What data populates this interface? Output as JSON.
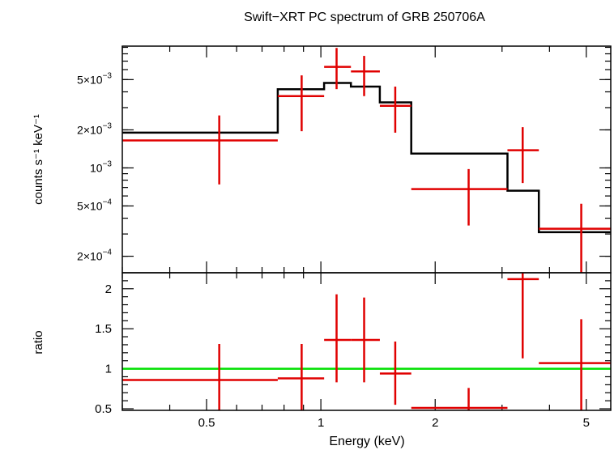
{
  "chart_data": [
    {
      "type": "scatter",
      "panel": "spectrum",
      "title": "Swift−XRT PC spectrum of GRB 250706A",
      "xlabel": "",
      "ylabel": "counts s⁻¹ keV⁻¹",
      "x_scale": "log",
      "y_scale": "log",
      "xlim": [
        0.3,
        5.8
      ],
      "ylim": [
        0.000148,
        0.0092
      ],
      "y_ticks": [
        {
          "value": 0.005,
          "mant": "5×10",
          "exp": "−3"
        },
        {
          "value": 0.002,
          "mant": "2×10",
          "exp": "−3"
        },
        {
          "value": 0.001,
          "mant": "10",
          "exp": "−3"
        },
        {
          "value": 0.0005,
          "mant": "5×10",
          "exp": "−4"
        },
        {
          "value": 0.0002,
          "mant": "2×10",
          "exp": "−4"
        }
      ],
      "series": [
        {
          "kind": "errorbars",
          "color": "#e00000",
          "points": [
            {
              "x": 0.54,
              "xlo": 0.3,
              "xhi": 0.77,
              "y": 0.00165,
              "ylo": 0.00074,
              "yhi": 0.0026
            },
            {
              "x": 0.89,
              "xlo": 0.77,
              "xhi": 1.02,
              "y": 0.0037,
              "ylo": 0.00195,
              "yhi": 0.0054
            },
            {
              "x": 1.1,
              "xlo": 1.02,
              "xhi": 1.2,
              "y": 0.0063,
              "ylo": 0.0042,
              "yhi": 0.0089
            },
            {
              "x": 1.3,
              "xlo": 1.2,
              "xhi": 1.43,
              "y": 0.0058,
              "ylo": 0.0037,
              "yhi": 0.0077
            },
            {
              "x": 1.57,
              "xlo": 1.43,
              "xhi": 1.73,
              "y": 0.0031,
              "ylo": 0.0019,
              "yhi": 0.0044
            },
            {
              "x": 2.45,
              "xlo": 1.73,
              "xhi": 3.1,
              "y": 0.00068,
              "ylo": 0.00035,
              "yhi": 0.00098
            },
            {
              "x": 3.4,
              "xlo": 3.1,
              "xhi": 3.75,
              "y": 0.00138,
              "ylo": 0.00076,
              "yhi": 0.0021
            },
            {
              "x": 4.85,
              "xlo": 3.75,
              "xhi": 5.8,
              "y": 0.00033,
              "ylo": 0.000148,
              "yhi": 0.00052
            }
          ]
        },
        {
          "kind": "model-step",
          "color": "#000000",
          "edges": [
            0.3,
            0.77,
            1.02,
            1.2,
            1.43,
            1.73,
            3.1,
            3.75,
            5.8
          ],
          "values": [
            0.0019,
            0.0042,
            0.0047,
            0.0044,
            0.0033,
            0.0013,
            0.00066,
            0.00031
          ]
        }
      ]
    },
    {
      "type": "scatter",
      "panel": "ratio",
      "xlabel": "Energy (keV)",
      "ylabel": "ratio",
      "x_scale": "log",
      "y_scale": "linear",
      "xlim": [
        0.3,
        5.8
      ],
      "ylim": [
        0.48,
        2.2
      ],
      "x_ticks": [
        {
          "value": 0.5,
          "label": "0.5"
        },
        {
          "value": 1,
          "label": "1"
        },
        {
          "value": 2,
          "label": "2"
        },
        {
          "value": 5,
          "label": "5"
        }
      ],
      "y_ticks": [
        {
          "value": 2,
          "label": "2"
        },
        {
          "value": 1.5,
          "label": "1.5"
        },
        {
          "value": 1,
          "label": "1"
        },
        {
          "value": 0.5,
          "label": "0.5"
        }
      ],
      "reference_line": {
        "y": 1,
        "color": "#00e000"
      },
      "series": [
        {
          "kind": "errorbars",
          "color": "#e00000",
          "points": [
            {
              "x": 0.54,
              "xlo": 0.3,
              "xhi": 0.77,
              "y": 0.86,
              "ylo": 0.48,
              "yhi": 1.31
            },
            {
              "x": 0.89,
              "xlo": 0.77,
              "xhi": 1.02,
              "y": 0.88,
              "ylo": 0.48,
              "yhi": 1.31
            },
            {
              "x": 1.1,
              "xlo": 1.02,
              "xhi": 1.2,
              "y": 1.36,
              "ylo": 0.83,
              "yhi": 1.93
            },
            {
              "x": 1.3,
              "xlo": 1.2,
              "xhi": 1.43,
              "y": 1.36,
              "ylo": 0.83,
              "yhi": 1.89
            },
            {
              "x": 1.57,
              "xlo": 1.43,
              "xhi": 1.73,
              "y": 0.94,
              "ylo": 0.55,
              "yhi": 1.34
            },
            {
              "x": 2.45,
              "xlo": 1.73,
              "xhi": 3.1,
              "y": 0.51,
              "ylo": 0.48,
              "yhi": 0.76
            },
            {
              "x": 3.4,
              "xlo": 3.1,
              "xhi": 3.75,
              "y": 2.12,
              "ylo": 1.13,
              "yhi": 2.2
            },
            {
              "x": 4.85,
              "xlo": 3.75,
              "xhi": 5.8,
              "y": 1.07,
              "ylo": 0.48,
              "yhi": 1.62
            }
          ]
        }
      ]
    }
  ]
}
